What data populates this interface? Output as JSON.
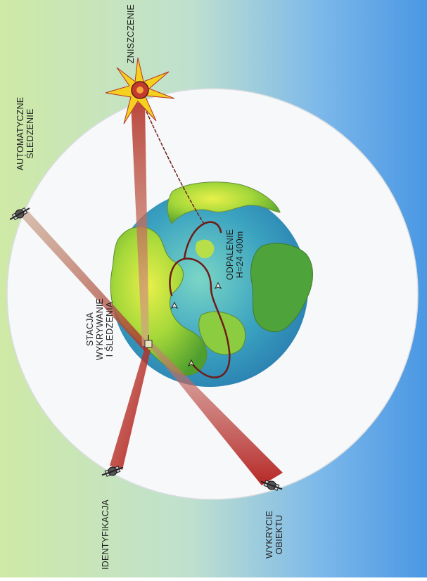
{
  "labels": {
    "destruction": [
      "ZNISZCZENIE"
    ],
    "auto_tracking": [
      "AUTOMATYCZNE",
      "ŚLEDZENIE"
    ],
    "station": [
      "STACJA",
      "WYKRYWANIE",
      "I ŚLEDZENIA"
    ],
    "launch": [
      "ODPALENIE",
      "H=24 400m"
    ],
    "identification": [
      "IDENTYFIKACJA"
    ],
    "detection": [
      "WYKRYCIE",
      "OBIEKTU"
    ]
  },
  "colors": {
    "bg_left": "#c9e7a2",
    "bg_right": "#4f9be6",
    "orbit_fill": "#f8f9fa",
    "ocean": "#3fa2c4",
    "land": "#8dcc3c",
    "beam": "#b5261e",
    "trajectory": "#7a1f1a"
  }
}
